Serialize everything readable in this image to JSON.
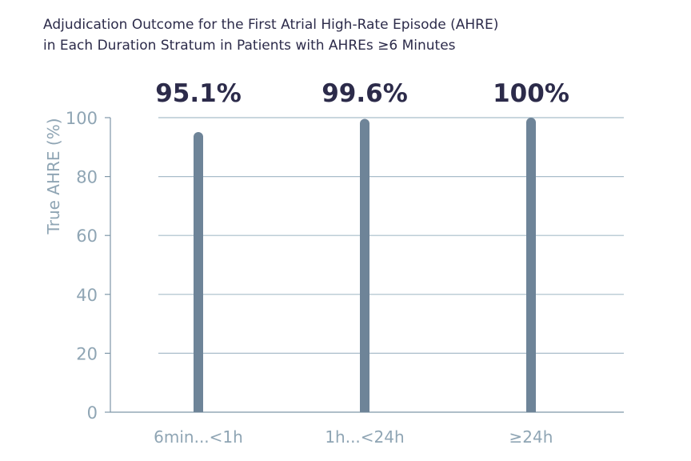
{
  "chart_data": {
    "type": "bar",
    "title_lines": [
      "Adjudication Outcome for the First Atrial High-Rate Episode (AHRE)",
      "in Each Duration Stratum in Patients with AHREs ≥6 Minutes"
    ],
    "xlabel": "",
    "ylabel": "True AHRE (%)",
    "ylim": [
      0,
      100
    ],
    "yticks": [
      0,
      20,
      40,
      60,
      80,
      100
    ],
    "grid": true,
    "categories": [
      "6min...<1h",
      "1h...<24h",
      "≥24h"
    ],
    "values": [
      95.1,
      99.6,
      100
    ],
    "data_labels": [
      "95.1%",
      "99.6%",
      "100%"
    ]
  },
  "colors": {
    "bar": "#6e8498",
    "grid": "#a9bdca",
    "axis": "#7f97a8",
    "tick_text": "#8fa5b4",
    "data_label": "#2c2b4a",
    "title": "#2c2b4a"
  }
}
